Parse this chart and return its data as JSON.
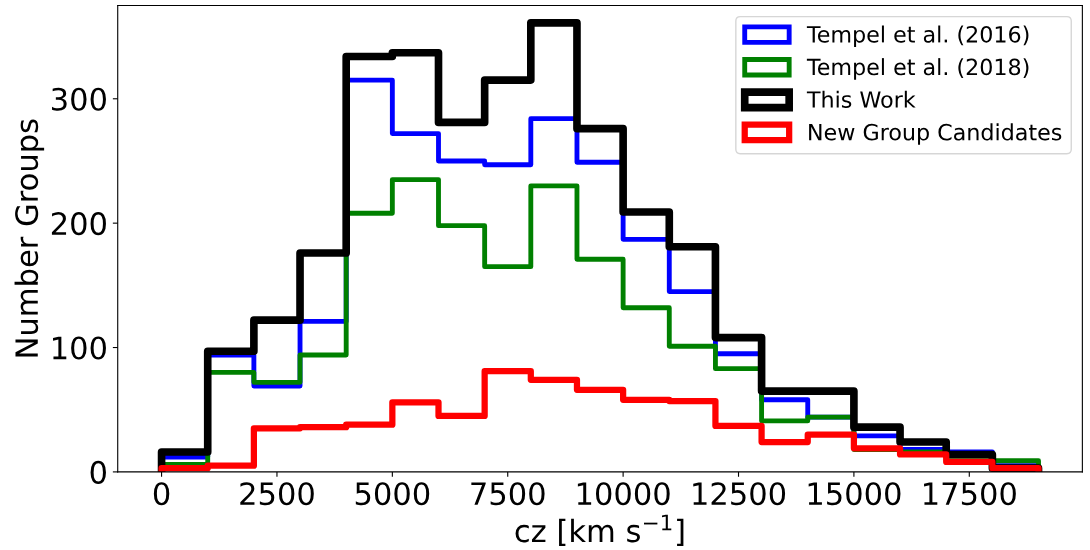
{
  "chart_data": {
    "type": "histogram",
    "xlabel": "cz [km s$^{−1}$]",
    "ylabel": "Number Groups",
    "bins": [
      0,
      1000,
      2000,
      3000,
      4000,
      5000,
      6000,
      7000,
      8000,
      9000,
      10000,
      11000,
      12000,
      13000,
      14000,
      15000,
      16000,
      17000,
      18000,
      19000
    ],
    "series": [
      {
        "name": "Tempel et al. (2016)",
        "color": "#0000ff",
        "values": [
          12,
          94,
          69,
          121,
          315,
          272,
          250,
          247,
          284,
          249,
          187,
          145,
          95,
          58,
          44,
          29,
          18,
          16,
          5
        ]
      },
      {
        "name": "Tempel et al. (2018)",
        "color": "#008000",
        "values": [
          6,
          80,
          72,
          94,
          208,
          235,
          198,
          165,
          230,
          171,
          132,
          101,
          83,
          41,
          44,
          18,
          16,
          9,
          9
        ]
      },
      {
        "name": "This Work",
        "color": "#000000",
        "values": [
          16,
          97,
          122,
          176,
          334,
          337,
          281,
          315,
          361,
          276,
          209,
          181,
          108,
          65,
          65,
          36,
          24,
          14,
          3
        ]
      },
      {
        "name": "New Group Candidates",
        "color": "#ff0000",
        "values": [
          3,
          5,
          35,
          36,
          38,
          56,
          45,
          81,
          74,
          66,
          58,
          57,
          37,
          24,
          30,
          19,
          14,
          8,
          3
        ]
      }
    ],
    "xlim": [
      -950,
      19950
    ],
    "ylim": [
      0,
      375
    ],
    "xticks": [
      0,
      2500,
      5000,
      7500,
      10000,
      12500,
      15000,
      17500
    ],
    "yticks": [
      0,
      100,
      200,
      300
    ],
    "grid": false,
    "legend": "top right"
  }
}
